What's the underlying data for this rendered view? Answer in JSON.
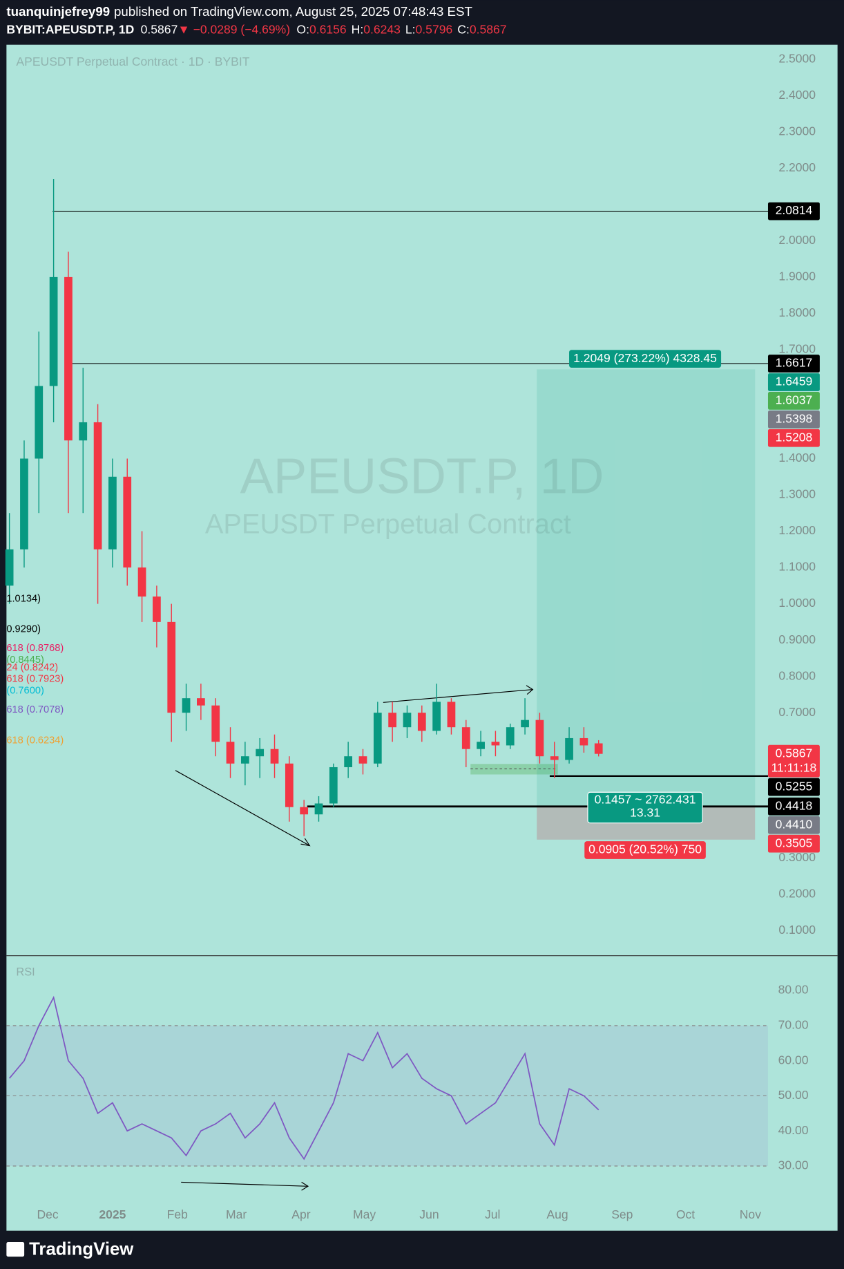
{
  "header": {
    "author": "tuanquinjefrey99",
    "published": "published on TradingView.com, August 25, 2025 07:48:43 EST",
    "symbol": "BYBIT:APEUSDT.P, 1D",
    "last": 0.5867,
    "change": "▼ −0.0289 (−4.69%)",
    "ohlc": [
      {
        "label": "O:",
        "value": 0.6156
      },
      {
        "label": "H:",
        "value": 0.6243
      },
      {
        "label": "L:",
        "value": 0.5796
      },
      {
        "label": "C:",
        "value": 0.5867
      }
    ]
  },
  "footer": {
    "brand": "TradingView"
  },
  "chart_data": [
    {
      "type": "candlestick",
      "title": "APEUSDT Perpetual Contract · 1D · BYBIT",
      "watermark": "APEUSDT.P, 1D",
      "watermark_subtitle": "APEUSDT Perpetual Contract",
      "categories": [
        null,
        null,
        null,
        null,
        null,
        null,
        null,
        null,
        null,
        null,
        null,
        null,
        null,
        null,
        null,
        null,
        null,
        null,
        null,
        null,
        null,
        null,
        null,
        null,
        null,
        null,
        null,
        null,
        null,
        null,
        null,
        null,
        null,
        null,
        null,
        null,
        null,
        null,
        null,
        null,
        null
      ],
      "open": [
        1.05,
        1.15,
        1.4,
        1.6,
        1.9,
        1.45,
        1.5,
        1.15,
        1.35,
        1.1,
        1.02,
        0.95,
        0.7,
        0.74,
        0.72,
        0.62,
        0.56,
        0.58,
        0.6,
        0.56,
        0.44,
        0.42,
        0.45,
        0.55,
        0.58,
        0.56,
        0.7,
        0.66,
        0.7,
        0.65,
        0.73,
        0.66,
        0.6,
        0.62,
        0.61,
        0.66,
        0.68,
        0.58,
        0.57,
        0.63,
        0.6156
      ],
      "high": [
        1.25,
        1.45,
        1.75,
        2.17,
        1.97,
        1.65,
        1.55,
        1.4,
        1.4,
        1.2,
        1.05,
        1.0,
        0.78,
        0.78,
        0.74,
        0.66,
        0.62,
        0.63,
        0.64,
        0.58,
        0.46,
        0.47,
        0.56,
        0.62,
        0.6,
        0.73,
        0.73,
        0.72,
        0.72,
        0.78,
        0.74,
        0.68,
        0.65,
        0.65,
        0.67,
        0.74,
        0.7,
        0.62,
        0.66,
        0.66,
        0.6243
      ],
      "low": [
        1.0,
        1.1,
        1.25,
        1.5,
        1.25,
        1.25,
        1.0,
        1.1,
        1.05,
        0.95,
        0.88,
        0.62,
        0.65,
        0.68,
        0.58,
        0.52,
        0.5,
        0.52,
        0.52,
        0.4,
        0.36,
        0.4,
        0.44,
        0.52,
        0.53,
        0.55,
        0.62,
        0.63,
        0.62,
        0.64,
        0.64,
        0.55,
        0.58,
        0.58,
        0.6,
        0.64,
        0.56,
        0.52,
        0.56,
        0.59,
        0.5796
      ],
      "close": [
        1.15,
        1.4,
        1.6,
        1.9,
        1.45,
        1.5,
        1.15,
        1.35,
        1.1,
        1.02,
        0.95,
        0.7,
        0.74,
        0.72,
        0.62,
        0.56,
        0.58,
        0.6,
        0.56,
        0.44,
        0.42,
        0.45,
        0.55,
        0.58,
        0.56,
        0.7,
        0.66,
        0.7,
        0.65,
        0.73,
        0.66,
        0.6,
        0.62,
        0.61,
        0.66,
        0.68,
        0.58,
        0.57,
        0.63,
        0.61,
        0.5867
      ],
      "up_color": "#089981",
      "down_color": "#f23645",
      "xlim": [
        -0.2,
        51.5
      ],
      "xticks": [
        {
          "value": 2.6,
          "label": "Dec"
        },
        {
          "value": 7,
          "label": "2025"
        },
        {
          "value": 11.4,
          "label": "Feb"
        },
        {
          "value": 15.4,
          "label": "Mar"
        },
        {
          "value": 19.8,
          "label": "Apr"
        },
        {
          "value": 24.1,
          "label": "May"
        },
        {
          "value": 28.5,
          "label": "Jun"
        },
        {
          "value": 32.8,
          "label": "Jul"
        },
        {
          "value": 37.2,
          "label": "Aug"
        },
        {
          "value": 41.6,
          "label": "Sep"
        },
        {
          "value": 45.9,
          "label": "Oct"
        },
        {
          "value": 50.3,
          "label": "Nov"
        }
      ],
      "ylim": [
        0.033,
        2.54
      ],
      "yticks": [
        {
          "value": 2.5,
          "label": "2.5000"
        },
        {
          "value": 2.4,
          "label": "2.4000"
        },
        {
          "value": 2.3,
          "label": "2.3000"
        },
        {
          "value": 2.2,
          "label": "2.2000"
        },
        {
          "value": 2.0,
          "label": "2.0000"
        },
        {
          "value": 1.9,
          "label": "1.9000"
        },
        {
          "value": 1.8,
          "label": "1.8000"
        },
        {
          "value": 1.7,
          "label": "1.7000"
        },
        {
          "value": 1.4,
          "label": "1.4000"
        },
        {
          "value": 1.3,
          "label": "1.3000"
        },
        {
          "value": 1.2,
          "label": "1.2000"
        },
        {
          "value": 1.1,
          "label": "1.1000"
        },
        {
          "value": 1.0,
          "label": "1.0000"
        },
        {
          "value": 0.9,
          "label": "0.9000"
        },
        {
          "value": 0.8,
          "label": "0.8000"
        },
        {
          "value": 0.7,
          "label": "0.7000"
        },
        {
          "value": 0.3,
          "label": "0.3000"
        },
        {
          "value": 0.2,
          "label": "0.2000"
        },
        {
          "value": 0.1,
          "label": "0.1000"
        }
      ],
      "grid": false,
      "price_labels": [
        {
          "value": 2.0814,
          "color": "#000000"
        },
        {
          "value": 1.6617,
          "color": "#000000"
        },
        {
          "value": 1.6459,
          "color": "#089981"
        },
        {
          "value": 1.6037,
          "color": "#4caf50"
        },
        {
          "value": 1.5398,
          "color": "#787b86"
        },
        {
          "value": 1.5208,
          "color": "#f23645"
        },
        {
          "value": 0.5867,
          "color": "#f23645",
          "countdown": "11:11:18"
        },
        {
          "value": 0.5255,
          "color": "#000000"
        },
        {
          "value": 0.4418,
          "color": "#000000"
        },
        {
          "value": 0.441,
          "label": "0.4410",
          "color": "#787b86"
        },
        {
          "value": 0.3505,
          "color": "#f23645"
        }
      ],
      "position": {
        "target": 1.6459,
        "entry": 0.441,
        "stop": 0.3505,
        "target_text": "1.2049 (273.22%) 4328.45",
        "center_text": "0.1457 ~ 2762.431",
        "ratio": 13.31,
        "stop_text": "0.0905 (20.52%) 750"
      },
      "fib_labels": [
        {
          "text": "1.0134)",
          "value": 1.0134,
          "color": "#000000"
        },
        {
          "text": "0.9290)",
          "value": 0.929,
          "color": "#000000"
        },
        {
          "text": "618 (0.8768)",
          "value": 0.8768,
          "color": "#e91e63"
        },
        {
          "text": "(0.8445)",
          "value": 0.8445,
          "color": "#4caf50"
        },
        {
          "text": "24 (0.8242)",
          "value": 0.8242,
          "color": "#f23645"
        },
        {
          "text": "618 (0.7923)",
          "value": 0.7923,
          "color": "#f23645"
        },
        {
          "text": "(0.7600)",
          "value": 0.76,
          "color": "#00bcd4"
        },
        {
          "text": "618 (0.7078)",
          "value": 0.7078,
          "color": "#7e57c2"
        },
        {
          "text": "618 (0.6234)",
          "value": 0.6234,
          "color": "#f0a030"
        }
      ]
    },
    {
      "type": "line",
      "title": "RSI",
      "color": "#7e57c2",
      "values": [
        55,
        60,
        70,
        78,
        60,
        55,
        45,
        48,
        40,
        42,
        40,
        38,
        33,
        40,
        42,
        45,
        38,
        42,
        48,
        38,
        32,
        40,
        48,
        62,
        60,
        68,
        58,
        62,
        55,
        52,
        50,
        42,
        45,
        48,
        55,
        62,
        42,
        36,
        52,
        50,
        46
      ],
      "ylim": [
        18.7,
        89.0
      ],
      "yticks": [
        {
          "value": 80,
          "label": "80.00"
        },
        {
          "value": 70,
          "label": "70.00"
        },
        {
          "value": 60,
          "label": "60.00"
        },
        {
          "value": 50,
          "label": "50.00"
        },
        {
          "value": 40,
          "label": "40.00"
        },
        {
          "value": 30,
          "label": "30.00"
        }
      ],
      "band": [
        30,
        70
      ],
      "dashed": [
        30,
        50,
        70
      ]
    }
  ]
}
